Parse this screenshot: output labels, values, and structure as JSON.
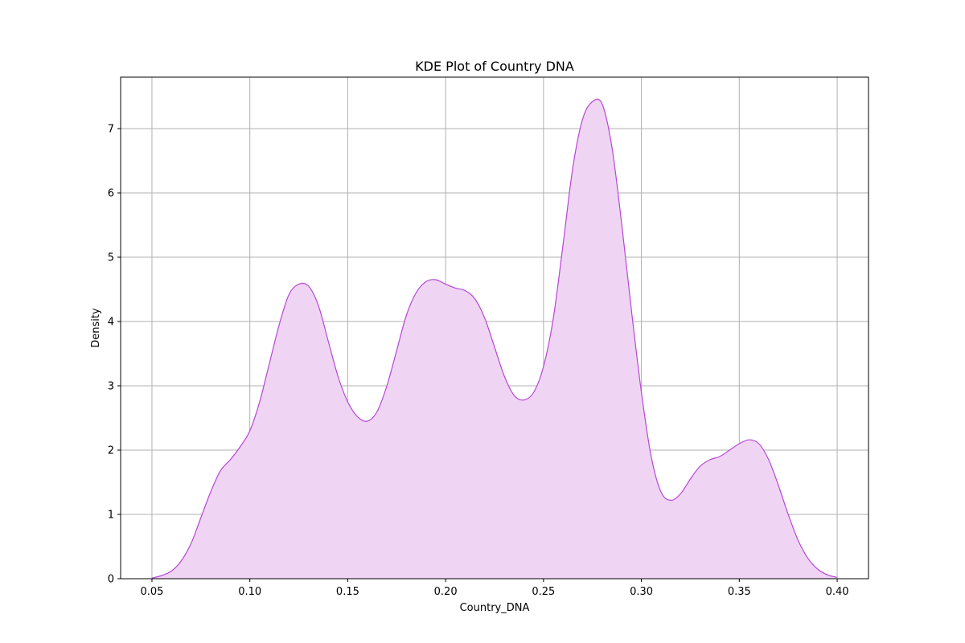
{
  "chart_data": {
    "type": "area",
    "title": "KDE Plot of Country DNA",
    "xlabel": "Country_DNA",
    "ylabel": "Density",
    "xlim": [
      0.034,
      0.416
    ],
    "ylim": [
      0,
      7.8
    ],
    "xticks": [
      0.05,
      0.1,
      0.15,
      0.2,
      0.25,
      0.3,
      0.35,
      0.4
    ],
    "xtick_labels": [
      "0.05",
      "0.10",
      "0.15",
      "0.20",
      "0.25",
      "0.30",
      "0.35",
      "0.40"
    ],
    "yticks": [
      0,
      1,
      2,
      3,
      4,
      5,
      6,
      7
    ],
    "ytick_labels": [
      "0",
      "1",
      "2",
      "3",
      "4",
      "5",
      "6",
      "7"
    ],
    "grid": true,
    "series": [
      {
        "color": "#b846d8",
        "fill_color": "#efd5f3",
        "x": [
          0.05,
          0.055,
          0.06,
          0.065,
          0.07,
          0.075,
          0.08,
          0.085,
          0.09,
          0.095,
          0.1,
          0.105,
          0.11,
          0.115,
          0.12,
          0.125,
          0.13,
          0.135,
          0.14,
          0.145,
          0.15,
          0.155,
          0.16,
          0.165,
          0.17,
          0.175,
          0.18,
          0.185,
          0.19,
          0.195,
          0.2,
          0.205,
          0.21,
          0.215,
          0.22,
          0.225,
          0.23,
          0.235,
          0.24,
          0.245,
          0.25,
          0.255,
          0.26,
          0.265,
          0.27,
          0.275,
          0.28,
          0.285,
          0.29,
          0.295,
          0.3,
          0.305,
          0.31,
          0.315,
          0.32,
          0.325,
          0.33,
          0.335,
          0.34,
          0.345,
          0.35,
          0.355,
          0.36,
          0.365,
          0.37,
          0.375,
          0.38,
          0.385,
          0.39,
          0.395,
          0.4
        ],
        "y": [
          0.01,
          0.05,
          0.12,
          0.28,
          0.55,
          0.95,
          1.35,
          1.68,
          1.85,
          2.05,
          2.3,
          2.75,
          3.35,
          3.95,
          4.42,
          4.58,
          4.55,
          4.25,
          3.7,
          3.15,
          2.75,
          2.52,
          2.45,
          2.6,
          3.0,
          3.55,
          4.1,
          4.45,
          4.62,
          4.65,
          4.58,
          4.52,
          4.48,
          4.35,
          4.05,
          3.6,
          3.15,
          2.85,
          2.78,
          2.9,
          3.3,
          4.05,
          5.2,
          6.4,
          7.15,
          7.42,
          7.38,
          6.7,
          5.5,
          4.15,
          2.9,
          1.9,
          1.35,
          1.22,
          1.32,
          1.55,
          1.75,
          1.85,
          1.9,
          2.0,
          2.1,
          2.16,
          2.1,
          1.85,
          1.45,
          1.0,
          0.6,
          0.32,
          0.15,
          0.06,
          0.02
        ]
      }
    ]
  }
}
